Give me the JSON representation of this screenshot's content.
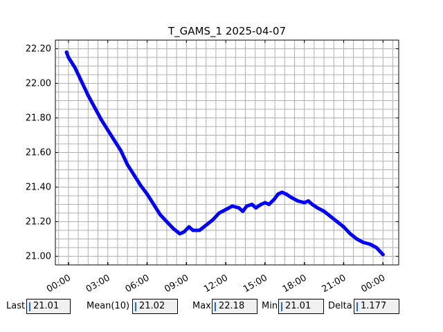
{
  "chart_data": {
    "type": "line",
    "title": "T_GAMS_1 2025-04-07",
    "xlabel": "",
    "ylabel": "",
    "x_tick_labels": [
      "00:00",
      "03:00",
      "06:00",
      "09:00",
      "12:00",
      "15:00",
      "18:00",
      "21:00",
      "00:00"
    ],
    "x_tick_hours": [
      0,
      3,
      6,
      9,
      12,
      15,
      18,
      21,
      24
    ],
    "xlim_hours": [
      -1.0,
      25.2
    ],
    "y_tick_labels": [
      "21.00",
      "21.20",
      "21.40",
      "21.60",
      "21.80",
      "22.00",
      "22.20"
    ],
    "y_ticks": [
      21.0,
      21.2,
      21.4,
      21.6,
      21.8,
      22.0,
      22.2
    ],
    "ylim": [
      20.95,
      22.25
    ],
    "grid": true,
    "line_color": "#0000ff",
    "series": [
      {
        "x_hours": [
          -0.15,
          0,
          0.5,
          1,
          1.5,
          2,
          2.5,
          3,
          3.5,
          4,
          4.5,
          5,
          5.5,
          6,
          6.5,
          7,
          7.5,
          8,
          8.5,
          8.8,
          9.2,
          9.5,
          10,
          10.5,
          11,
          11.5,
          12,
          12.5,
          13,
          13.3,
          13.6,
          14,
          14.3,
          14.7,
          15,
          15.3,
          15.7,
          16,
          16.3,
          16.6,
          17,
          17.5,
          18,
          18.3,
          18.6,
          19,
          19.5,
          20,
          20.5,
          21,
          21.5,
          22,
          22.5,
          23,
          23.5,
          24
        ],
        "values": [
          22.18,
          22.15,
          22.09,
          22.01,
          21.93,
          21.86,
          21.79,
          21.73,
          21.67,
          21.61,
          21.53,
          21.47,
          21.41,
          21.36,
          21.3,
          21.24,
          21.2,
          21.16,
          21.13,
          21.14,
          21.17,
          21.15,
          21.15,
          21.18,
          21.21,
          21.25,
          21.27,
          21.29,
          21.28,
          21.26,
          21.29,
          21.3,
          21.28,
          21.3,
          21.31,
          21.3,
          21.33,
          21.36,
          21.37,
          21.36,
          21.34,
          21.32,
          21.31,
          21.32,
          21.3,
          21.28,
          21.26,
          21.23,
          21.2,
          21.17,
          21.13,
          21.1,
          21.08,
          21.07,
          21.05,
          21.01
        ]
      }
    ]
  },
  "stats": {
    "last_label": "Last",
    "last_value": "21.01",
    "mean_label": "Mean(10)",
    "mean_value": "21.02",
    "max_label": "Max",
    "max_value": "22.18",
    "min_label": "Min",
    "min_value": "21.01",
    "delta_label": "Delta",
    "delta_value": "1.177"
  }
}
